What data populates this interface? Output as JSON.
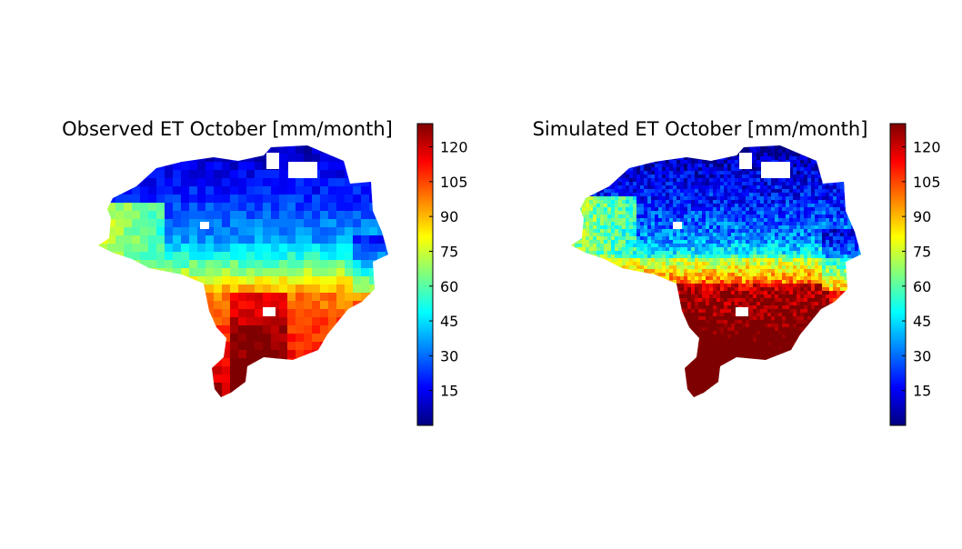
{
  "colormap": "jet",
  "colormap_stops": [
    "#00007f",
    "#0000ff",
    "#007fff",
    "#00ffff",
    "#7fff7f",
    "#ffff00",
    "#ff7f00",
    "#ff0000",
    "#7f0000"
  ],
  "chart_data": [
    {
      "type": "heatmap",
      "title": "Observed ET October [mm/month]",
      "colorbar": {
        "range": [
          0,
          130
        ],
        "ticks": [
          15,
          30,
          45,
          60,
          75,
          90,
          105,
          120
        ],
        "tick_labels": [
          "15",
          "30",
          "45",
          "60",
          "75",
          "90",
          "105",
          "120"
        ]
      },
      "spatial_pattern": "low in north (about 5-25), moderate in west (about 45-75), high in south (about 95-130)",
      "resolution": "coarse",
      "axes": "off"
    },
    {
      "type": "heatmap",
      "title": "Simulated ET October [mm/month]",
      "colorbar": {
        "range": [
          0,
          130
        ],
        "ticks": [
          15,
          30,
          45,
          60,
          75,
          90,
          105,
          120
        ],
        "tick_labels": [
          "15",
          "30",
          "45",
          "60",
          "75",
          "90",
          "105",
          "120"
        ]
      },
      "spatial_pattern": "low in north (about 5-25), moderate in middle band (about 45-75), very high in south (about 110-130)",
      "resolution": "fine",
      "axes": "off"
    }
  ]
}
